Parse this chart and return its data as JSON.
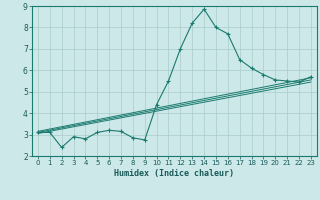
{
  "title": "",
  "xlabel": "Humidex (Indice chaleur)",
  "bg_color": "#cce8e8",
  "grid_color": "#aacccc",
  "line_color": "#1a7a6e",
  "xlim": [
    -0.5,
    23.5
  ],
  "ylim": [
    2,
    9
  ],
  "xticks": [
    0,
    1,
    2,
    3,
    4,
    5,
    6,
    7,
    8,
    9,
    10,
    11,
    12,
    13,
    14,
    15,
    16,
    17,
    18,
    19,
    20,
    21,
    22,
    23
  ],
  "yticks": [
    2,
    3,
    4,
    5,
    6,
    7,
    8,
    9
  ],
  "curve1_x": [
    0,
    1,
    2,
    3,
    4,
    5,
    6,
    7,
    8,
    9,
    10,
    11,
    12,
    13,
    14,
    15,
    16,
    17,
    18,
    19,
    20,
    21,
    22,
    23
  ],
  "curve1_y": [
    3.1,
    3.1,
    2.4,
    2.9,
    2.8,
    3.1,
    3.2,
    3.15,
    2.85,
    2.75,
    4.4,
    5.5,
    7.0,
    8.2,
    8.85,
    8.0,
    7.7,
    6.5,
    6.1,
    5.8,
    5.55,
    5.5,
    5.45,
    5.7
  ],
  "line1_x": [
    0,
    23
  ],
  "line1_y": [
    3.05,
    5.45
  ],
  "line2_x": [
    0,
    23
  ],
  "line2_y": [
    3.1,
    5.55
  ],
  "line3_x": [
    0,
    23
  ],
  "line3_y": [
    3.15,
    5.65
  ]
}
